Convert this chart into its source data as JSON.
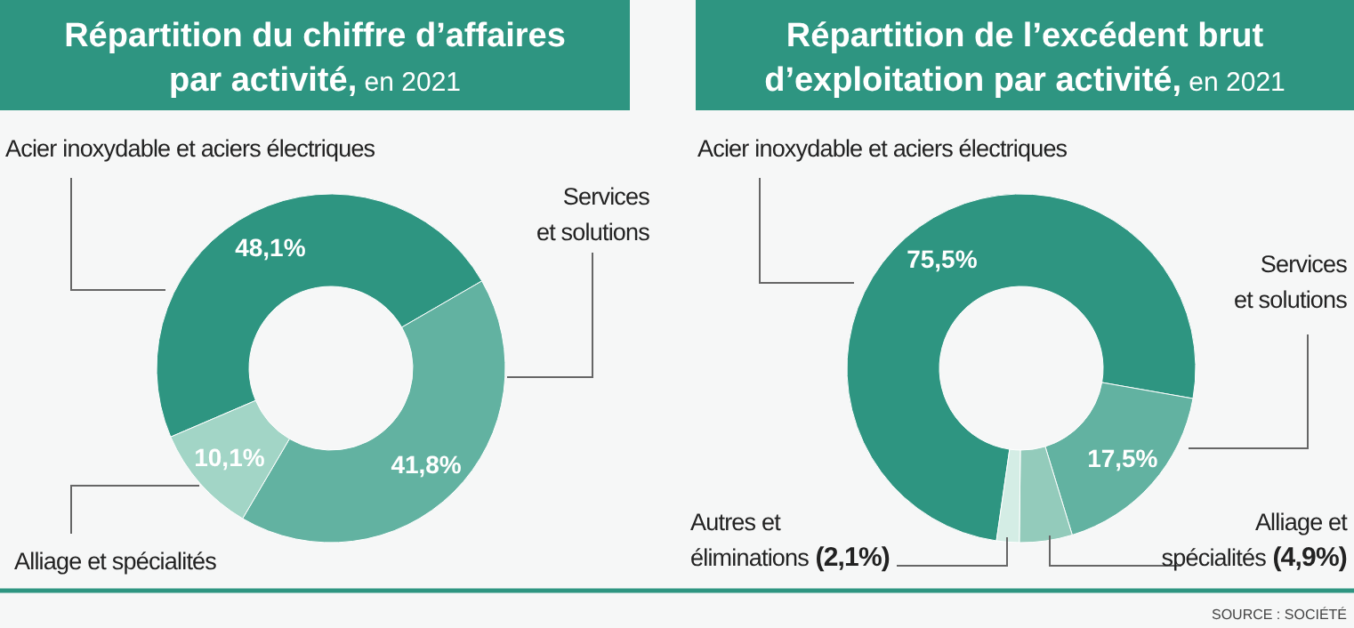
{
  "chart_data": [
    {
      "type": "donut",
      "title": "Répartition du chiffre d’affaires par activité,",
      "subtitle": "en 2021",
      "categories": [
        "Acier inoxydable et aciers électriques",
        "Services et solutions",
        "Alliage et spécialités"
      ],
      "values": [
        48.1,
        41.8,
        10.1
      ],
      "colors": [
        "#2e9581",
        "#62b2a1",
        "#a2d5c6"
      ],
      "value_labels": [
        "48,1%",
        "41,8%",
        "10,1%"
      ]
    },
    {
      "type": "donut",
      "title": "Répartition de l’excédent brut d’exploitation par activité,",
      "subtitle": "en 2021",
      "categories": [
        "Acier inoxydable et aciers électriques",
        "Services et solutions",
        "Alliage et spécialités",
        "Autres et éliminations"
      ],
      "values": [
        75.5,
        17.5,
        4.9,
        2.1
      ],
      "colors": [
        "#2e9581",
        "#62b2a1",
        "#93cbbb",
        "#d4ede5"
      ],
      "value_labels": [
        "75,5%",
        "17,5%",
        "(4,9%)",
        "(2,1%)"
      ],
      "annotations": [
        "SOURCE : SOCIÉTÉ"
      ]
    }
  ]
}
